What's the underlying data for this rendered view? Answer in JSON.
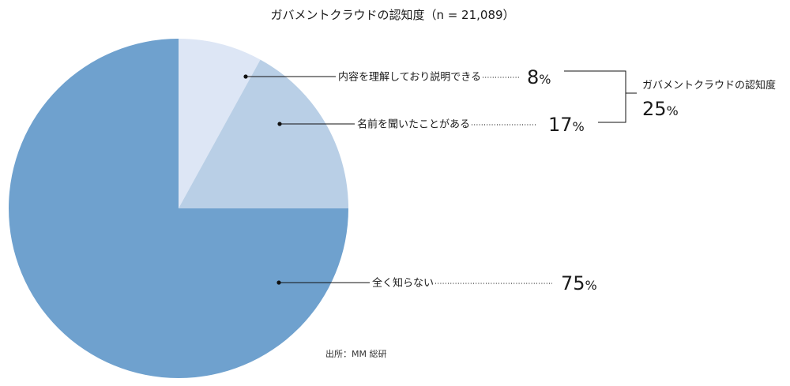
{
  "chart_data": {
    "type": "pie",
    "title": "ガバメントクラウドの認知度（n = 21,089）",
    "slices": [
      {
        "label": "内容を理解しており説明できる",
        "value": 8,
        "color": "#dde6f5"
      },
      {
        "label": "名前を聞いたことがある",
        "value": 17,
        "color": "#b9cfe6"
      },
      {
        "label": "全く知らない",
        "value": 75,
        "color": "#6fa1ce"
      }
    ],
    "unit": "%",
    "group": {
      "label": "ガバメントクラウドの認知度",
      "value": 25,
      "members": [
        0,
        1
      ]
    },
    "source": "出所：MM 総研"
  }
}
